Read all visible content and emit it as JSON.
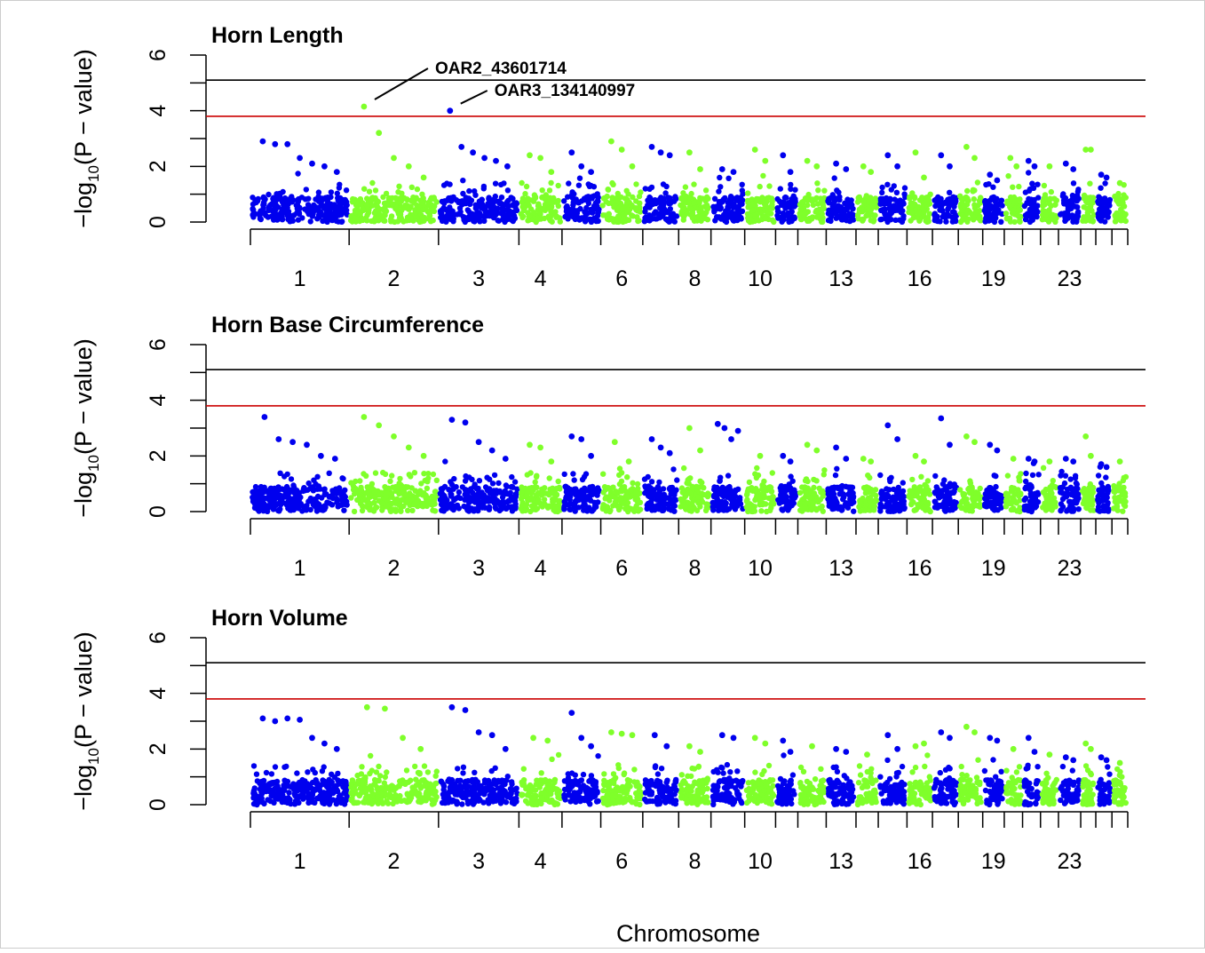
{
  "chart_data": [
    {
      "type": "scatter",
      "title": "Horn Length",
      "ylabel_prefix": "−log",
      "ylabel_sub": "10",
      "ylabel_suffix": "(P − value)",
      "xlabel": "Chromosome",
      "ylim": [
        0,
        6
      ],
      "yticks": [
        0,
        2,
        4,
        6
      ],
      "n_chromosomes": 26,
      "xtick_labels": [
        "1",
        "2",
        "3",
        "4",
        "6",
        "8",
        "10",
        "13",
        "16",
        "19",
        "23"
      ],
      "xtick_chromosomes": [
        1,
        2,
        3,
        4,
        6,
        8,
        10,
        13,
        16,
        19,
        23
      ],
      "thresholds": [
        {
          "value": 5.1,
          "color": "#000000"
        },
        {
          "value": 3.8,
          "color": "#cc0000"
        }
      ],
      "colors": [
        "#0000ee",
        "#7fff2a"
      ],
      "series": [
        {
          "chr": 1,
          "color": "#0000ee",
          "values": [
            2.9,
            2.8,
            2.8,
            2.3,
            2.1,
            2.0,
            1.8
          ]
        },
        {
          "chr": 2,
          "color": "#7fff2a",
          "values": [
            4.15,
            3.2,
            2.3,
            2.0,
            1.6
          ]
        },
        {
          "chr": 3,
          "color": "#0000ee",
          "values": [
            4.0,
            2.7,
            2.5,
            2.3,
            2.2,
            2.0
          ]
        },
        {
          "chr": 4,
          "color": "#7fff2a",
          "values": [
            2.4,
            2.3,
            1.8
          ]
        },
        {
          "chr": 5,
          "color": "#0000ee",
          "values": [
            2.5,
            2.0,
            1.8
          ]
        },
        {
          "chr": 6,
          "color": "#7fff2a",
          "values": [
            2.9,
            2.6,
            2.0
          ]
        },
        {
          "chr": 7,
          "color": "#0000ee",
          "values": [
            2.7,
            2.5,
            2.4
          ]
        },
        {
          "chr": 8,
          "color": "#7fff2a",
          "values": [
            2.5,
            1.9
          ]
        },
        {
          "chr": 9,
          "color": "#0000ee",
          "values": [
            1.9,
            1.8
          ]
        },
        {
          "chr": 10,
          "color": "#7fff2a",
          "values": [
            2.6,
            2.2
          ]
        },
        {
          "chr": 11,
          "color": "#0000ee",
          "values": [
            2.4,
            1.8
          ]
        },
        {
          "chr": 12,
          "color": "#7fff2a",
          "values": [
            2.2,
            2.0
          ]
        },
        {
          "chr": 13,
          "color": "#0000ee",
          "values": [
            2.1,
            1.9
          ]
        },
        {
          "chr": 14,
          "color": "#7fff2a",
          "values": [
            2.0,
            1.8
          ]
        },
        {
          "chr": 15,
          "color": "#0000ee",
          "values": [
            2.4,
            2.0
          ]
        },
        {
          "chr": 16,
          "color": "#7fff2a",
          "values": [
            2.5,
            1.6
          ]
        },
        {
          "chr": 17,
          "color": "#0000ee",
          "values": [
            2.4,
            2.0
          ]
        },
        {
          "chr": 18,
          "color": "#7fff2a",
          "values": [
            2.7,
            2.3
          ]
        },
        {
          "chr": 19,
          "color": "#0000ee",
          "values": [
            1.7,
            1.5
          ]
        },
        {
          "chr": 20,
          "color": "#7fff2a",
          "values": [
            2.3,
            2.0
          ]
        },
        {
          "chr": 21,
          "color": "#0000ee",
          "values": [
            2.2,
            2.0
          ]
        },
        {
          "chr": 22,
          "color": "#7fff2a",
          "values": [
            2.0
          ]
        },
        {
          "chr": 23,
          "color": "#0000ee",
          "values": [
            2.1,
            1.9
          ]
        },
        {
          "chr": 24,
          "color": "#7fff2a",
          "values": [
            2.6,
            2.6
          ]
        },
        {
          "chr": 25,
          "color": "#0000ee",
          "values": [
            1.7,
            1.6
          ]
        },
        {
          "chr": 26,
          "color": "#7fff2a",
          "values": [
            1.4
          ]
        }
      ],
      "annotations": [
        {
          "text": "OAR2_43601714",
          "chr": 2,
          "value": 4.15
        },
        {
          "text": "OAR3_134140997",
          "chr": 3,
          "value": 4.0
        }
      ]
    },
    {
      "type": "scatter",
      "title": "Horn Base Circumference",
      "ylabel_prefix": "−log",
      "ylabel_sub": "10",
      "ylabel_suffix": "(P − value)",
      "xlabel": "Chromosome",
      "ylim": [
        0,
        6
      ],
      "yticks": [
        0,
        2,
        4,
        6
      ],
      "n_chromosomes": 26,
      "xtick_labels": [
        "1",
        "2",
        "3",
        "4",
        "6",
        "8",
        "10",
        "13",
        "16",
        "19",
        "23"
      ],
      "xtick_chromosomes": [
        1,
        2,
        3,
        4,
        6,
        8,
        10,
        13,
        16,
        19,
        23
      ],
      "thresholds": [
        {
          "value": 5.1,
          "color": "#000000"
        },
        {
          "value": 3.8,
          "color": "#cc0000"
        }
      ],
      "colors": [
        "#0000ee",
        "#7fff2a"
      ],
      "series": [
        {
          "chr": 1,
          "color": "#0000ee",
          "values": [
            3.4,
            2.6,
            2.5,
            2.4,
            2.0,
            1.9
          ]
        },
        {
          "chr": 2,
          "color": "#7fff2a",
          "values": [
            3.4,
            3.1,
            2.7,
            2.3,
            2.0
          ]
        },
        {
          "chr": 3,
          "color": "#0000ee",
          "values": [
            3.3,
            3.2,
            2.5,
            2.2,
            1.9
          ]
        },
        {
          "chr": 4,
          "color": "#7fff2a",
          "values": [
            2.4,
            2.3,
            1.8
          ]
        },
        {
          "chr": 5,
          "color": "#0000ee",
          "values": [
            2.7,
            2.6,
            2.0
          ]
        },
        {
          "chr": 6,
          "color": "#7fff2a",
          "values": [
            2.5,
            1.8
          ]
        },
        {
          "chr": 7,
          "color": "#0000ee",
          "values": [
            2.6,
            2.3,
            2.1
          ]
        },
        {
          "chr": 8,
          "color": "#7fff2a",
          "values": [
            3.0,
            2.2
          ]
        },
        {
          "chr": 9,
          "color": "#0000ee",
          "values": [
            3.15,
            3.0,
            2.6,
            2.9
          ]
        },
        {
          "chr": 10,
          "color": "#7fff2a",
          "values": [
            2.0
          ]
        },
        {
          "chr": 11,
          "color": "#0000ee",
          "values": [
            2.0,
            1.8
          ]
        },
        {
          "chr": 12,
          "color": "#7fff2a",
          "values": [
            2.4,
            2.2
          ]
        },
        {
          "chr": 13,
          "color": "#0000ee",
          "values": [
            2.3,
            1.9
          ]
        },
        {
          "chr": 14,
          "color": "#7fff2a",
          "values": [
            1.9,
            1.8
          ]
        },
        {
          "chr": 15,
          "color": "#0000ee",
          "values": [
            3.1,
            2.6
          ]
        },
        {
          "chr": 16,
          "color": "#7fff2a",
          "values": [
            2.0,
            1.8
          ]
        },
        {
          "chr": 17,
          "color": "#0000ee",
          "values": [
            3.35,
            2.4
          ]
        },
        {
          "chr": 18,
          "color": "#7fff2a",
          "values": [
            2.7,
            2.5
          ]
        },
        {
          "chr": 19,
          "color": "#0000ee",
          "values": [
            2.4,
            2.2
          ]
        },
        {
          "chr": 20,
          "color": "#7fff2a",
          "values": [
            1.9
          ]
        },
        {
          "chr": 21,
          "color": "#0000ee",
          "values": [
            1.9,
            1.8
          ]
        },
        {
          "chr": 22,
          "color": "#7fff2a",
          "values": [
            1.8
          ]
        },
        {
          "chr": 23,
          "color": "#0000ee",
          "values": [
            1.9,
            1.8
          ]
        },
        {
          "chr": 24,
          "color": "#7fff2a",
          "values": [
            2.7,
            2.0
          ]
        },
        {
          "chr": 25,
          "color": "#0000ee",
          "values": [
            1.7,
            1.6
          ]
        },
        {
          "chr": 26,
          "color": "#7fff2a",
          "values": [
            1.8
          ]
        }
      ],
      "annotations": []
    },
    {
      "type": "scatter",
      "title": "Horn Volume",
      "ylabel_prefix": "−log",
      "ylabel_sub": "10",
      "ylabel_suffix": "(P − value)",
      "xlabel": "Chromosome",
      "ylim": [
        0,
        6
      ],
      "yticks": [
        0,
        2,
        4,
        6
      ],
      "n_chromosomes": 26,
      "xtick_labels": [
        "1",
        "2",
        "3",
        "4",
        "6",
        "8",
        "10",
        "13",
        "16",
        "19",
        "23"
      ],
      "xtick_chromosomes": [
        1,
        2,
        3,
        4,
        6,
        8,
        10,
        13,
        16,
        19,
        23
      ],
      "thresholds": [
        {
          "value": 5.1,
          "color": "#000000"
        },
        {
          "value": 3.8,
          "color": "#cc0000"
        }
      ],
      "colors": [
        "#0000ee",
        "#7fff2a"
      ],
      "series": [
        {
          "chr": 1,
          "color": "#0000ee",
          "values": [
            3.1,
            3.0,
            3.1,
            3.05,
            2.4,
            2.2,
            2.0
          ]
        },
        {
          "chr": 2,
          "color": "#7fff2a",
          "values": [
            3.5,
            3.45,
            2.4,
            2.0
          ]
        },
        {
          "chr": 3,
          "color": "#0000ee",
          "values": [
            3.5,
            3.4,
            2.6,
            2.5,
            2.0
          ]
        },
        {
          "chr": 4,
          "color": "#7fff2a",
          "values": [
            2.4,
            2.3
          ]
        },
        {
          "chr": 5,
          "color": "#0000ee",
          "values": [
            3.3,
            2.4,
            2.1
          ]
        },
        {
          "chr": 6,
          "color": "#7fff2a",
          "values": [
            2.6,
            2.55,
            2.5
          ]
        },
        {
          "chr": 7,
          "color": "#0000ee",
          "values": [
            2.5,
            2.1
          ]
        },
        {
          "chr": 8,
          "color": "#7fff2a",
          "values": [
            2.1,
            1.9
          ]
        },
        {
          "chr": 9,
          "color": "#0000ee",
          "values": [
            2.5,
            2.4
          ]
        },
        {
          "chr": 10,
          "color": "#7fff2a",
          "values": [
            2.4,
            2.2
          ]
        },
        {
          "chr": 11,
          "color": "#0000ee",
          "values": [
            2.3,
            1.9
          ]
        },
        {
          "chr": 12,
          "color": "#7fff2a",
          "values": [
            2.1
          ]
        },
        {
          "chr": 13,
          "color": "#0000ee",
          "values": [
            2.0,
            1.9
          ]
        },
        {
          "chr": 14,
          "color": "#7fff2a",
          "values": [
            1.8
          ]
        },
        {
          "chr": 15,
          "color": "#0000ee",
          "values": [
            2.5,
            2.0
          ]
        },
        {
          "chr": 16,
          "color": "#7fff2a",
          "values": [
            2.1,
            2.2
          ]
        },
        {
          "chr": 17,
          "color": "#0000ee",
          "values": [
            2.6,
            2.4
          ]
        },
        {
          "chr": 18,
          "color": "#7fff2a",
          "values": [
            2.8,
            2.6
          ]
        },
        {
          "chr": 19,
          "color": "#0000ee",
          "values": [
            2.4,
            2.3
          ]
        },
        {
          "chr": 20,
          "color": "#7fff2a",
          "values": [
            2.0
          ]
        },
        {
          "chr": 21,
          "color": "#0000ee",
          "values": [
            2.4,
            1.9
          ]
        },
        {
          "chr": 22,
          "color": "#7fff2a",
          "values": [
            1.8
          ]
        },
        {
          "chr": 23,
          "color": "#0000ee",
          "values": [
            1.7,
            1.6
          ]
        },
        {
          "chr": 24,
          "color": "#7fff2a",
          "values": [
            2.2,
            2.0
          ]
        },
        {
          "chr": 25,
          "color": "#0000ee",
          "values": [
            1.7,
            1.6
          ]
        },
        {
          "chr": 26,
          "color": "#7fff2a",
          "values": [
            1.5
          ]
        }
      ],
      "annotations": []
    }
  ],
  "figure": {
    "xaxis_title": "Chromosome"
  }
}
